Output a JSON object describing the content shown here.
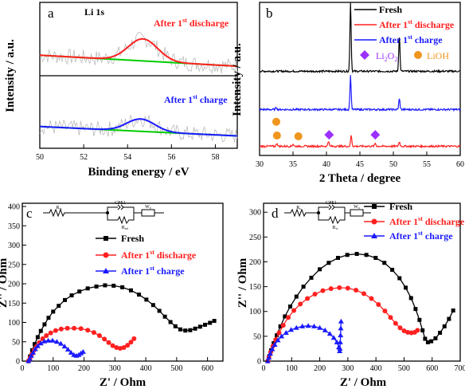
{
  "chart_data": [
    {
      "panel": "a",
      "type": "line",
      "title": "Li 1s",
      "xlabel": "Binding energy / eV",
      "ylabel": "Intensity / a.u.",
      "xlim": [
        50,
        59
      ],
      "x_ticks": [
        50,
        52,
        54,
        56,
        58
      ],
      "y_ticks": false,
      "subplots": [
        {
          "label": "After 1st discharge",
          "color": "#ff2020",
          "peak": {
            "center": 54.7,
            "height": 0.3,
            "width": 0.95
          },
          "baseline": {
            "start": 0.28,
            "end": 0.13
          },
          "raw_color": "#bbbbbb"
        },
        {
          "label": "After 1st charge",
          "color": "#1a1aff",
          "peak": {
            "center": 54.6,
            "height": 0.17,
            "width": 0.9
          },
          "baseline": {
            "start": 0.3,
            "end": 0.17
          },
          "raw_color": "#bbbbbb"
        }
      ],
      "baseline_color": "#00cc00"
    },
    {
      "panel": "b",
      "type": "line",
      "xlabel": "2 Theta / degree",
      "ylabel": "Intensity / a.u.",
      "xlim": [
        30,
        60
      ],
      "x_ticks": [
        30,
        35,
        40,
        45,
        50,
        55,
        60
      ],
      "y_ticks": false,
      "series": [
        {
          "name": "Fresh",
          "color": "#000000",
          "offset": 0.55,
          "peaks": [
            [
              43.6,
              0.45
            ],
            [
              50.9,
              0.23
            ]
          ]
        },
        {
          "name": "After 1st charge",
          "color": "#1a1aff",
          "offset": 0.3,
          "peaks": [
            [
              43.6,
              0.22
            ],
            [
              50.9,
              0.07
            ],
            [
              32.5,
              0.015
            ]
          ]
        },
        {
          "name": "After 1st discharge",
          "color": "#ff2020",
          "offset": 0.06,
          "peaks": [
            [
              43.7,
              0.07
            ],
            [
              50.9,
              0.03
            ],
            [
              32.6,
              0.02
            ],
            [
              35.0,
              0.015
            ],
            [
              40.3,
              0.035
            ],
            [
              47.3,
              0.02
            ]
          ]
        }
      ],
      "legend": [
        {
          "name": "Fresh",
          "color": "#000000"
        },
        {
          "name": "After 1st discharge",
          "color": "#ff2020"
        },
        {
          "name": "After 1st charge",
          "color": "#1a1aff"
        }
      ],
      "legend_placement": "top-right",
      "markers": {
        "Li2O2": {
          "label": "Li2O2",
          "color": "#9b30ff",
          "shape": "diamond"
        },
        "LiOH": {
          "label": "LiOH",
          "color": "#f0951e",
          "shape": "circle"
        }
      },
      "marker_points": [
        {
          "kind": "LiOH",
          "x": 32.5,
          "y": 0.22
        },
        {
          "kind": "LiOH",
          "x": 32.6,
          "y": 0.13
        },
        {
          "kind": "LiOH",
          "x": 35.8,
          "y": 0.125
        },
        {
          "kind": "Li2O2",
          "x": 40.4,
          "y": 0.135
        },
        {
          "kind": "Li2O2",
          "x": 47.3,
          "y": 0.135
        }
      ]
    },
    {
      "panel": "c",
      "type": "scatter",
      "xlabel": "Z' / Ohm",
      "ylabel": "Z'' / Ohm",
      "xlim": [
        0,
        650
      ],
      "ylim": [
        0,
        400
      ],
      "x_ticks": [
        0,
        100,
        200,
        300,
        400,
        500,
        600
      ],
      "y_ticks": [
        0,
        50,
        100,
        150,
        200,
        250,
        300,
        350,
        400
      ],
      "legend_placement": "upper-center",
      "series": [
        {
          "name": "Fresh",
          "color": "#000000",
          "marker": "square",
          "points": [
            [
              20,
              0
            ],
            [
              25,
              12
            ],
            [
              32,
              28
            ],
            [
              40,
              44
            ],
            [
              50,
              62
            ],
            [
              60,
              78
            ],
            [
              72,
              95
            ],
            [
              85,
              112
            ],
            [
              100,
              128
            ],
            [
              118,
              143
            ],
            [
              138,
              158
            ],
            [
              160,
              170
            ],
            [
              185,
              180
            ],
            [
              212,
              188
            ],
            [
              240,
              193
            ],
            [
              268,
              196
            ],
            [
              296,
              195
            ],
            [
              324,
              191
            ],
            [
              352,
              183
            ],
            [
              378,
              172
            ],
            [
              402,
              159
            ],
            [
              424,
              145
            ],
            [
              444,
              130
            ],
            [
              462,
              115
            ],
            [
              480,
              101
            ],
            [
              496,
              90
            ],
            [
              512,
              82
            ],
            [
              528,
              79
            ],
            [
              544,
              80
            ],
            [
              560,
              84
            ],
            [
              576,
              89
            ],
            [
              592,
              94
            ],
            [
              608,
              99
            ],
            [
              622,
              104
            ]
          ]
        },
        {
          "name": "After 1st discharge",
          "color": "#ff2020",
          "marker": "circle",
          "points": [
            [
              20,
              0
            ],
            [
              25,
              8
            ],
            [
              31,
              18
            ],
            [
              38,
              28
            ],
            [
              46,
              38
            ],
            [
              55,
              48
            ],
            [
              66,
              58
            ],
            [
              78,
              66
            ],
            [
              92,
              73
            ],
            [
              108,
              79
            ],
            [
              126,
              83
            ],
            [
              146,
              85
            ],
            [
              168,
              85
            ],
            [
              190,
              84
            ],
            [
              212,
              80
            ],
            [
              232,
              74
            ],
            [
              250,
              66
            ],
            [
              266,
              57
            ],
            [
              280,
              48
            ],
            [
              293,
              40
            ],
            [
              305,
              35
            ],
            [
              317,
              33
            ],
            [
              329,
              35
            ],
            [
              341,
              41
            ],
            [
              352,
              49
            ],
            [
              362,
              58
            ]
          ]
        },
        {
          "name": "After 1st charge",
          "color": "#1a1aff",
          "marker": "triangle",
          "points": [
            [
              20,
              0
            ],
            [
              24,
              6
            ],
            [
              29,
              14
            ],
            [
              35,
              22
            ],
            [
              42,
              31
            ],
            [
              50,
              39
            ],
            [
              60,
              46
            ],
            [
              71,
              51
            ],
            [
              84,
              53
            ],
            [
              98,
              53
            ],
            [
              112,
              50
            ],
            [
              125,
              45
            ],
            [
              137,
              38
            ],
            [
              148,
              30
            ],
            [
              158,
              22
            ],
            [
              167,
              16
            ],
            [
              175,
              14
            ],
            [
              183,
              16
            ],
            [
              190,
              20
            ],
            [
              197,
              24
            ]
          ]
        }
      ],
      "circuit": {
        "elements": [
          "Rct",
          "CPE1",
          "Wo",
          "Rsei"
        ]
      }
    },
    {
      "panel": "d",
      "type": "scatter",
      "xlabel": "Z' / Ohm",
      "ylabel": "Z'' / Ohm",
      "xlim": [
        0,
        700
      ],
      "ylim": [
        0,
        310
      ],
      "x_ticks": [
        0,
        100,
        200,
        300,
        400,
        500,
        600,
        700
      ],
      "y_ticks": [
        0,
        50,
        100,
        150,
        200,
        250,
        300
      ],
      "legend_placement": "upper-center",
      "series": [
        {
          "name": "Fresh",
          "color": "#000000",
          "marker": "square",
          "points": [
            [
              15,
              0
            ],
            [
              20,
              10
            ],
            [
              27,
              22
            ],
            [
              36,
              36
            ],
            [
              47,
              52
            ],
            [
              60,
              70
            ],
            [
              76,
              90
            ],
            [
              95,
              110
            ],
            [
              117,
              130
            ],
            [
              142,
              150
            ],
            [
              170,
              168
            ],
            [
              200,
              185
            ],
            [
              232,
              198
            ],
            [
              265,
              208
            ],
            [
              298,
              214
            ],
            [
              332,
              216
            ],
            [
              366,
              214
            ],
            [
              399,
              208
            ],
            [
              430,
              198
            ],
            [
              458,
              184
            ],
            [
              484,
              167
            ],
            [
              506,
              148
            ],
            [
              525,
              127
            ],
            [
              541,
              105
            ],
            [
              555,
              83
            ],
            [
              566,
              62
            ],
            [
              575,
              45
            ],
            [
              585,
              38
            ],
            [
              597,
              40
            ],
            [
              612,
              46
            ],
            [
              628,
              57
            ],
            [
              644,
              70
            ],
            [
              660,
              85
            ],
            [
              675,
              102
            ]
          ]
        },
        {
          "name": "After 1st discharge",
          "color": "#ff2020",
          "marker": "circle",
          "points": [
            [
              15,
              0
            ],
            [
              19,
              8
            ],
            [
              25,
              18
            ],
            [
              33,
              30
            ],
            [
              43,
              43
            ],
            [
              55,
              57
            ],
            [
              70,
              72
            ],
            [
              88,
              88
            ],
            [
              108,
              102
            ],
            [
              131,
              115
            ],
            [
              156,
              126
            ],
            [
              183,
              135
            ],
            [
              211,
              142
            ],
            [
              240,
              146
            ],
            [
              270,
              148
            ],
            [
              300,
              147
            ],
            [
              329,
              143
            ],
            [
              357,
              136
            ],
            [
              384,
              126
            ],
            [
              409,
              114
            ],
            [
              432,
              101
            ],
            [
              452,
              88
            ],
            [
              470,
              76
            ],
            [
              486,
              67
            ],
            [
              500,
              61
            ],
            [
              513,
              58
            ],
            [
              526,
              57
            ],
            [
              538,
              58
            ],
            [
              548,
              62
            ]
          ]
        },
        {
          "name": "After 1st charge",
          "color": "#1a1aff",
          "marker": "triangle",
          "points": [
            [
              15,
              0
            ],
            [
              19,
              7
            ],
            [
              24,
              15
            ],
            [
              31,
              24
            ],
            [
              40,
              33
            ],
            [
              51,
              42
            ],
            [
              64,
              50
            ],
            [
              80,
              57
            ],
            [
              98,
              63
            ],
            [
              117,
              67
            ],
            [
              138,
              70
            ],
            [
              159,
              71
            ],
            [
              180,
              70
            ],
            [
              200,
              67
            ],
            [
              219,
              62
            ],
            [
              236,
              55
            ],
            [
              250,
              47
            ],
            [
              261,
              38
            ],
            [
              268,
              28
            ],
            [
              271,
              20
            ],
            [
              272,
              25
            ],
            [
              273,
              38
            ],
            [
              274,
              52
            ],
            [
              275,
              66
            ],
            [
              276,
              80
            ]
          ]
        }
      ],
      "circuit": {
        "elements": [
          "Rs",
          "CPE1",
          "Wo",
          "Rct"
        ]
      }
    }
  ]
}
